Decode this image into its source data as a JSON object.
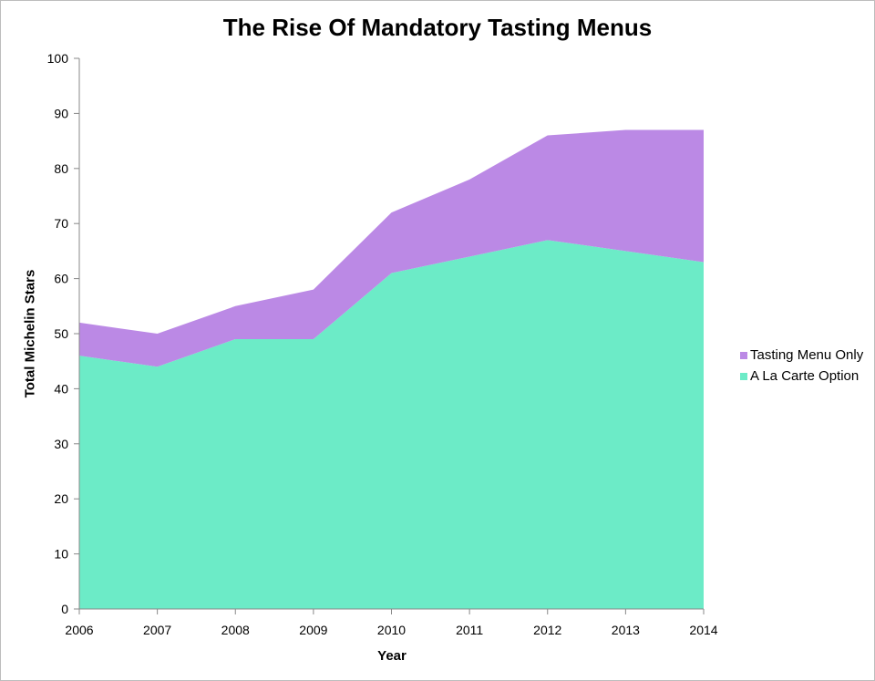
{
  "chart_data": {
    "type": "area",
    "title": "The Rise Of Mandatory Tasting Menus",
    "xlabel": "Year",
    "ylabel": "Total Michelin Stars",
    "x": [
      "2006",
      "2007",
      "2008",
      "2009",
      "2010",
      "2011",
      "2012",
      "2013",
      "2014"
    ],
    "stacked": true,
    "ylim": [
      0,
      100
    ],
    "yticks": [
      0,
      10,
      20,
      30,
      40,
      50,
      60,
      70,
      80,
      90,
      100
    ],
    "grid": false,
    "legend_position": "right",
    "series": [
      {
        "name": "A La Carte Option",
        "color": "#6cebc7",
        "values": [
          46,
          44,
          49,
          49,
          61,
          64,
          67,
          65,
          63
        ]
      },
      {
        "name": "Tasting Menu Only",
        "color": "#bb89e5",
        "values": [
          6,
          6,
          6,
          9,
          11,
          14,
          19,
          22,
          24
        ]
      }
    ],
    "legend": [
      {
        "name": "Tasting Menu Only",
        "color": "#bb89e5"
      },
      {
        "name": "A La Carte Option",
        "color": "#6cebc7"
      }
    ]
  }
}
